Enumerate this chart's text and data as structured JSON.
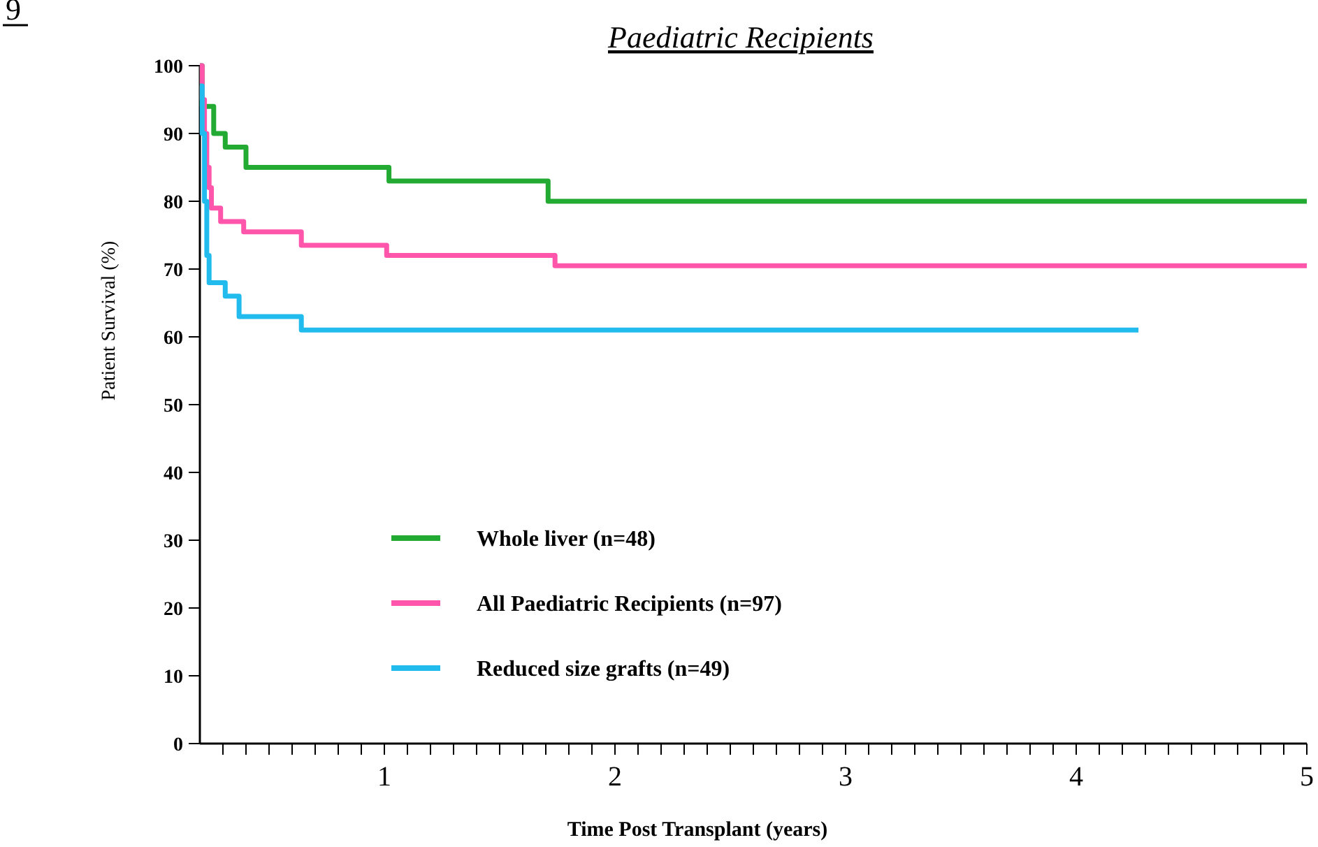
{
  "chart_data": {
    "type": "step",
    "title": "Paediatric Recipients",
    "xlabel": "Time Post Transplant (years)",
    "ylabel": "Patient Survival (%)",
    "annotations": [
      "9"
    ],
    "xlim": [
      0.2,
      5
    ],
    "xticks": [
      {
        "value": 0.3,
        "label": null
      },
      {
        "value": 0.4,
        "label": null
      },
      {
        "value": 0.5,
        "label": null
      },
      {
        "value": 0.6,
        "label": null
      },
      {
        "value": 0.7,
        "label": null
      },
      {
        "value": 0.8,
        "label": null
      },
      {
        "value": 0.9,
        "label": null
      },
      1,
      {
        "value": 1.1,
        "label": null
      },
      {
        "value": 1.2,
        "label": null
      },
      {
        "value": 1.3,
        "label": null
      },
      {
        "value": 1.4,
        "label": null
      },
      {
        "value": 1.5,
        "label": null
      },
      {
        "value": 1.6,
        "label": null
      },
      {
        "value": 1.7,
        "label": null
      },
      {
        "value": 1.8,
        "label": null
      },
      {
        "value": 1.9,
        "label": null
      },
      2,
      {
        "value": 2.1,
        "label": null
      },
      {
        "value": 2.2,
        "label": null
      },
      {
        "value": 2.3,
        "label": null
      },
      {
        "value": 2.4,
        "label": null
      },
      {
        "value": 2.5,
        "label": null
      },
      {
        "value": 2.6,
        "label": null
      },
      {
        "value": 2.7,
        "label": null
      },
      {
        "value": 2.8,
        "label": null
      },
      {
        "value": 2.9,
        "label": null
      },
      3,
      {
        "value": 3.1,
        "label": null
      },
      {
        "value": 3.2,
        "label": null
      },
      {
        "value": 3.3,
        "label": null
      },
      {
        "value": 3.4,
        "label": null
      },
      {
        "value": 3.5,
        "label": null
      },
      {
        "value": 3.6,
        "label": null
      },
      {
        "value": 3.7,
        "label": null
      },
      {
        "value": 3.8,
        "label": null
      },
      {
        "value": 3.9,
        "label": null
      },
      4,
      {
        "value": 4.1,
        "label": null
      },
      {
        "value": 4.2,
        "label": null
      },
      {
        "value": 4.3,
        "label": null
      },
      {
        "value": 4.4,
        "label": null
      },
      {
        "value": 4.5,
        "label": null
      },
      {
        "value": 4.6,
        "label": null
      },
      {
        "value": 4.7,
        "label": null
      },
      {
        "value": 4.8,
        "label": null
      },
      {
        "value": 4.9,
        "label": null
      },
      5
    ],
    "ylim": [
      0,
      100
    ],
    "yticks": [
      0,
      10,
      20,
      30,
      40,
      50,
      60,
      70,
      80,
      90,
      100
    ],
    "grid": false,
    "legend": "bottom left",
    "line_style": "solid",
    "series": [
      {
        "name": "Whole liver (n=48)",
        "color": "#22aa33",
        "x": [
          0.2,
          0.21,
          0.26,
          0.31,
          0.4,
          1.02,
          1.71,
          5
        ],
        "values": [
          100,
          94,
          90,
          88,
          85,
          83,
          80,
          80
        ]
      },
      {
        "name": "All Paediatric Recipients (n=97)",
        "color": "#ff55aa",
        "x": [
          0.2,
          0.21,
          0.22,
          0.23,
          0.24,
          0.25,
          0.29,
          0.39,
          0.64,
          1.01,
          1.74,
          5
        ],
        "values": [
          100,
          95,
          90,
          85,
          82,
          79,
          77,
          75.5,
          73.5,
          72,
          70.5,
          70.5
        ]
      },
      {
        "name": "Reduced size grafts (n=49)",
        "color": "#22bbee",
        "x": [
          0.2,
          0.21,
          0.22,
          0.23,
          0.24,
          0.26,
          0.31,
          0.37,
          0.64,
          4.27
        ],
        "values": [
          97,
          90,
          80,
          72,
          68,
          68,
          66,
          63,
          61,
          61
        ]
      }
    ]
  }
}
